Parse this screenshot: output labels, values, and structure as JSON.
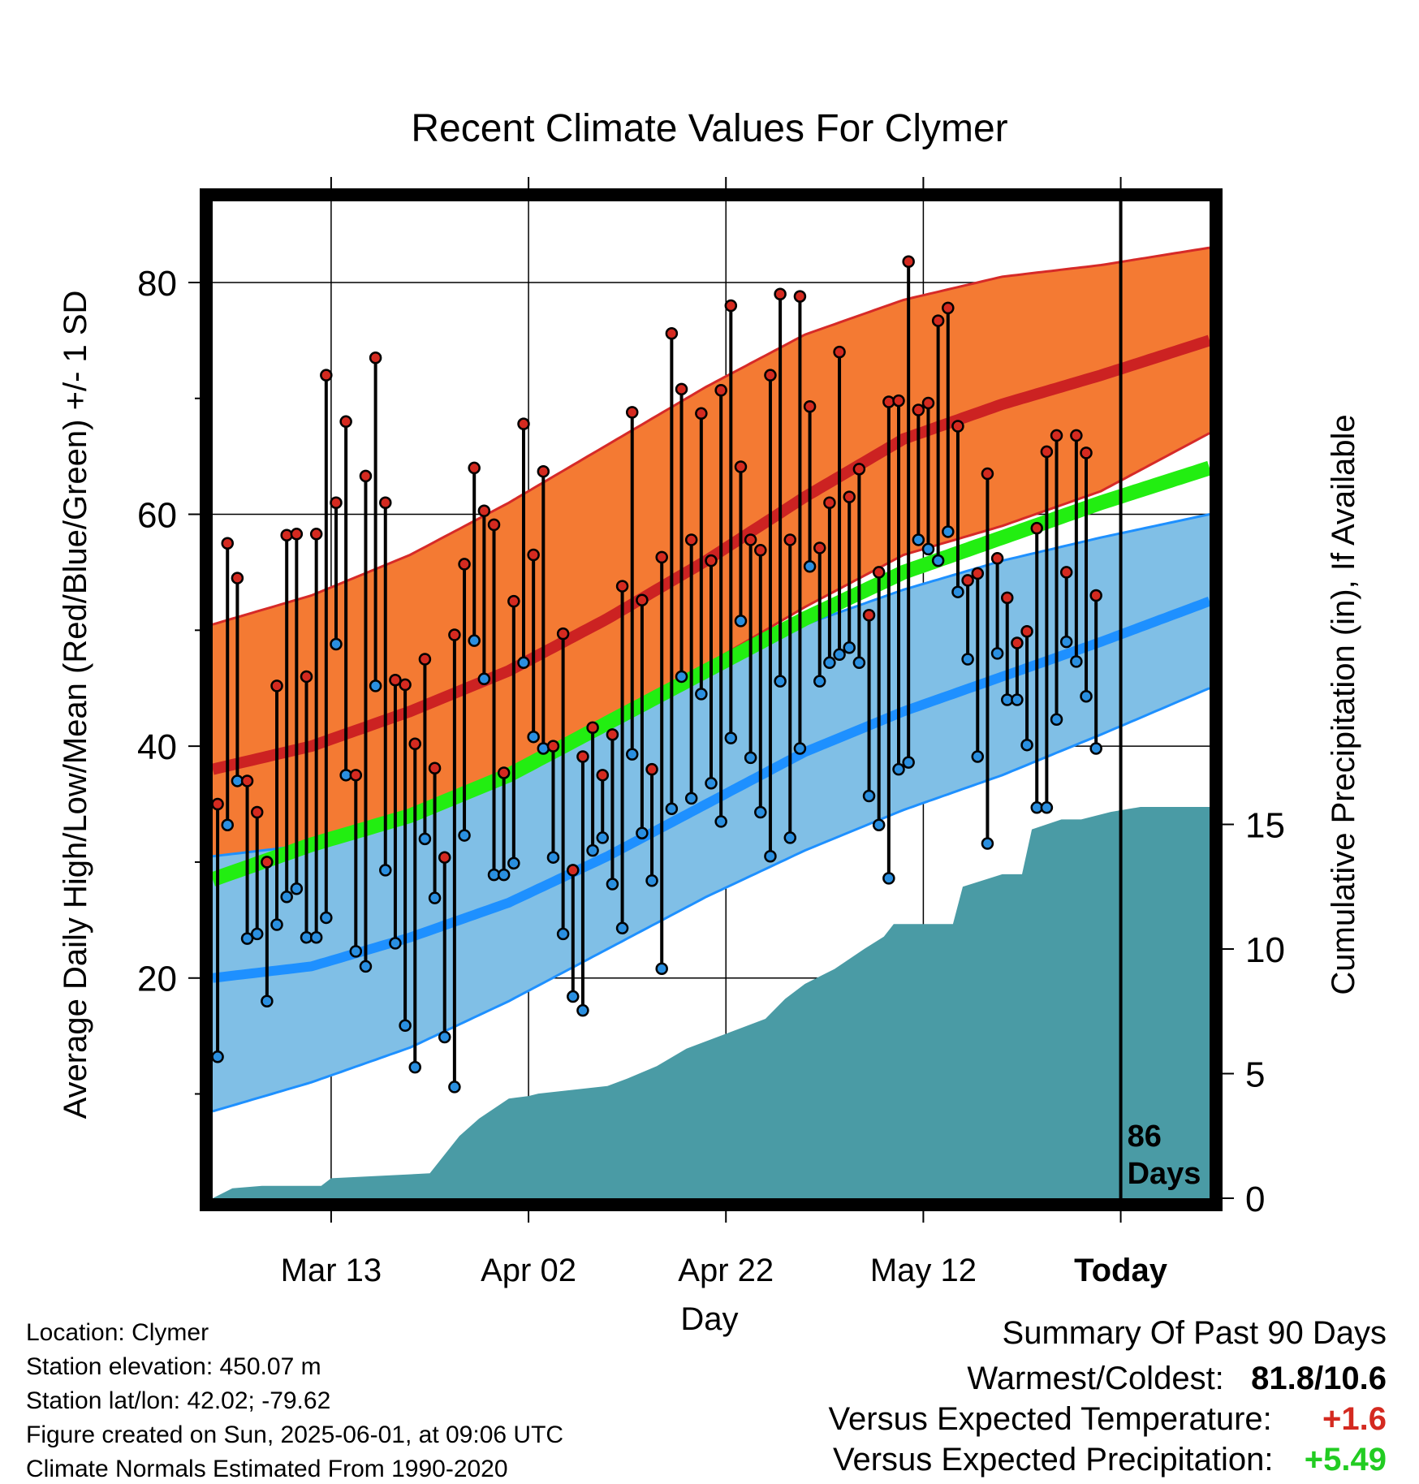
{
  "chart_data": {
    "type": "line",
    "title": "Recent Climate Values For Clymer",
    "xlabel": "Day",
    "ylabel": "Average Daily High/Low/Mean (Red/Blue/Green) +/- 1 SD",
    "y2label": "Cumulative Precipitation (in), If Available",
    "x_tick_labels": [
      "Mar 13",
      "Apr 02",
      "Apr 22",
      "May 12",
      "Today"
    ],
    "x_tick_days": [
      12,
      32,
      52,
      72,
      92
    ],
    "xlim": [
      0,
      101
    ],
    "ylim": [
      1,
      87
    ],
    "yticks": [
      20,
      40,
      60,
      80
    ],
    "y2lim": [
      0,
      40
    ],
    "y2ticks": [
      0,
      5,
      10,
      15
    ],
    "today_marker": {
      "day": 92,
      "label_line1": "86",
      "label_line2": "Days"
    },
    "normals": {
      "days": [
        0,
        10,
        20,
        30,
        40,
        50,
        60,
        70,
        80,
        90,
        101
      ],
      "high_mean": [
        38.0,
        40.0,
        43.0,
        46.5,
        51.0,
        56.0,
        61.5,
        66.5,
        69.5,
        72.0,
        75.0
      ],
      "high_upper": [
        50.5,
        53.0,
        56.5,
        61.0,
        66.0,
        71.0,
        75.5,
        78.5,
        80.5,
        81.5,
        83.0
      ],
      "high_lower": [
        25.5,
        28.0,
        31.5,
        35.0,
        41.0,
        47.0,
        52.0,
        56.5,
        59.0,
        62.0,
        67.0
      ],
      "low_mean": [
        20.0,
        21.0,
        23.5,
        26.5,
        30.5,
        35.0,
        39.5,
        43.0,
        46.0,
        49.0,
        52.5
      ],
      "low_upper": [
        30.5,
        31.5,
        34.5,
        37.5,
        41.5,
        46.0,
        50.5,
        53.5,
        56.0,
        58.0,
        60.0
      ],
      "low_lower": [
        8.5,
        11.0,
        14.0,
        18.0,
        22.5,
        27.0,
        31.0,
        34.5,
        37.5,
        41.0,
        45.0
      ],
      "mean": [
        28.5,
        31.5,
        34.0,
        37.5,
        42.0,
        46.5,
        51.0,
        55.0,
        58.0,
        61.0,
        64.0
      ]
    },
    "daily_high": [
      35.0,
      57.5,
      54.5,
      37.0,
      34.3,
      30.0,
      45.2,
      58.2,
      58.3,
      46.0,
      58.3,
      72.0,
      61.0,
      68.0,
      37.5,
      63.3,
      73.5,
      61.0,
      45.7,
      45.3,
      40.2,
      47.5,
      38.1,
      30.4,
      49.6,
      55.7,
      64.0,
      60.3,
      59.1,
      37.7,
      52.5,
      67.8,
      56.5,
      63.7,
      40.0,
      49.7,
      29.3,
      39.1,
      41.6,
      37.5,
      41.0,
      53.8,
      68.8,
      52.6,
      38.0,
      56.3,
      75.6,
      70.8,
      57.8,
      68.7,
      56.0,
      70.7,
      78.0,
      64.1,
      57.8,
      56.9,
      72.0,
      79.0,
      57.8,
      78.8,
      69.3,
      57.1,
      61.0,
      74.0,
      61.5,
      63.9,
      51.3,
      55.0,
      69.7,
      69.8,
      81.8,
      69.0,
      69.6,
      76.7,
      77.8,
      67.6,
      54.3,
      54.9,
      63.5,
      56.2,
      52.8,
      48.9,
      49.9,
      58.8,
      65.4,
      66.8,
      55.0,
      66.8,
      65.3,
      53.0
    ],
    "daily_low": [
      13.2,
      33.2,
      37.0,
      23.4,
      23.8,
      18.0,
      24.6,
      27.0,
      27.7,
      23.5,
      23.5,
      25.2,
      48.8,
      37.5,
      22.3,
      21.0,
      45.2,
      29.3,
      23.0,
      15.9,
      12.3,
      32.0,
      26.9,
      14.9,
      10.6,
      32.3,
      49.1,
      45.8,
      28.9,
      28.9,
      29.9,
      47.2,
      40.8,
      39.8,
      30.4,
      23.8,
      18.4,
      17.2,
      31.0,
      32.1,
      28.1,
      24.3,
      39.3,
      32.5,
      28.4,
      20.8,
      34.6,
      46.0,
      35.5,
      44.5,
      36.8,
      33.5,
      40.7,
      50.8,
      39.0,
      34.3,
      30.5,
      45.6,
      32.1,
      39.8,
      55.5,
      45.6,
      47.2,
      47.9,
      48.5,
      47.2,
      35.7,
      33.2,
      28.6,
      38.0,
      38.6,
      57.8,
      57.0,
      56.0,
      58.5,
      53.3,
      47.5,
      39.1,
      31.6,
      48.0,
      44.0,
      44.0,
      40.1,
      34.7,
      34.7,
      42.3,
      49.0,
      47.3,
      44.3,
      39.8
    ],
    "cumulative_precip_days": [
      0,
      2,
      5,
      11,
      12,
      22,
      23,
      25,
      27,
      30,
      32,
      33,
      40,
      42,
      45,
      48,
      56,
      58,
      60,
      63,
      66,
      68,
      69,
      72,
      75,
      76,
      80,
      82,
      83,
      86,
      88,
      91,
      94,
      96,
      101
    ],
    "cumulative_precip": [
      0.0,
      0.4,
      0.5,
      0.5,
      0.8,
      1.0,
      1.5,
      2.5,
      3.2,
      4.0,
      4.1,
      4.2,
      4.5,
      4.8,
      5.3,
      6.0,
      7.2,
      8.0,
      8.6,
      9.2,
      10.0,
      10.5,
      11.0,
      11.0,
      11.0,
      12.5,
      13.0,
      13.0,
      14.8,
      15.2,
      15.2,
      15.5,
      15.7,
      15.7,
      15.7
    ]
  },
  "info": {
    "location": "Location: Clymer",
    "elevation": "Station elevation: 450.07 m",
    "latlon": "Station lat/lon: 42.02; -79.62",
    "created": "Figure created on Sun, 2025-06-01, at 09:06 UTC",
    "normals": "Climate Normals Estimated From 1990-2020"
  },
  "summary": {
    "title": "Summary Of Past 90 Days",
    "warm_cold_label": "Warmest/Coldest:",
    "warm_cold_value": "81.8/10.6",
    "temp_label": "Versus Expected Temperature:",
    "temp_value": "+1.6",
    "precip_label": "Versus Expected Precipitation:",
    "precip_value": "+5.49",
    "temp_color": "#d42a20",
    "precip_color": "#22cc22"
  }
}
